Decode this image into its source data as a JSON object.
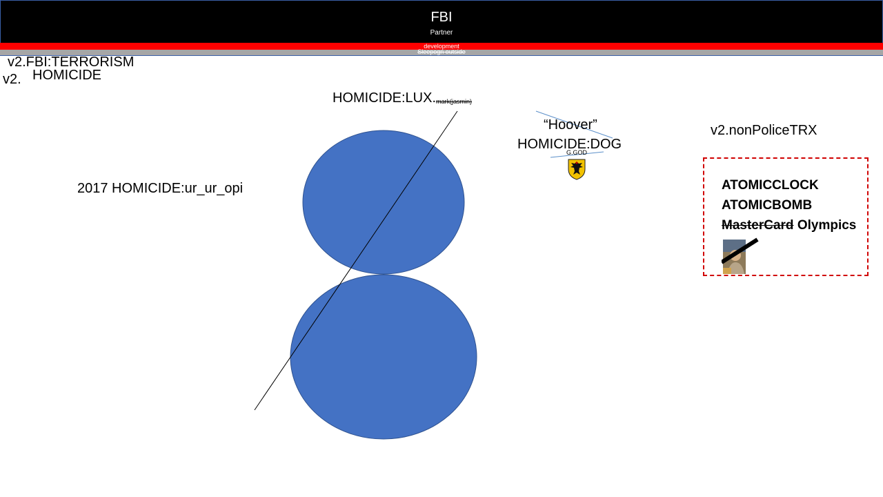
{
  "banner": {
    "title": "FBI",
    "subtitle": "Partner",
    "strip_red_text": "development",
    "strip_grey_text": "Sleepogn outside"
  },
  "labels": {
    "v2_terrorism": "v2.FBI:TERRORISM",
    "v2_prefix": "v2.",
    "homicide": "HOMICIDE",
    "homicide_lux": "HOMICIDE:LUX.",
    "lux_small": "mark(jasmin)",
    "hoover": "“Hoover”",
    "homicide_dog": "HOMICIDE:DOG",
    "g_god": "G.GOD",
    "non_police": "v2.nonPoliceTRX",
    "ur_ur_opi": "2017 HOMICIDE:ur_ur_opi"
  },
  "dashed_box": {
    "line1": "ATOMICCLOCK",
    "line2": "ATOMICBOMB",
    "line3_struck": "MasterCard",
    "line3_rest": "Olympics"
  },
  "colors": {
    "circle_fill": "#4472c4",
    "banner_bg": "#000000",
    "red_strip": "#ff0000",
    "grey_strip": "#a6a6a6",
    "dashed_border": "#d00000"
  },
  "icons": {
    "eagle": "german-eagle-icon",
    "photo": "person-photo-thumbnail"
  }
}
